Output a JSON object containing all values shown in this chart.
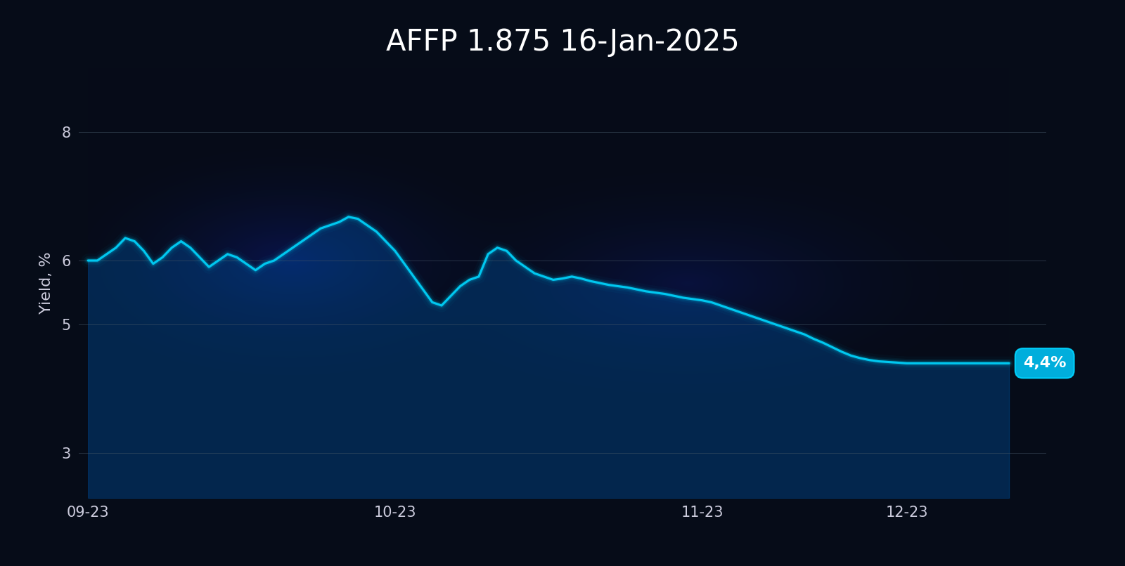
{
  "title": "AFFP 1.875 16-Jan-2025",
  "ylabel": "Yield, %",
  "yticks": [
    3,
    5,
    6,
    8
  ],
  "ylim": [
    2.3,
    9.0
  ],
  "xlabels": [
    "09-23",
    "10-23",
    "11-23",
    "12-23"
  ],
  "xtick_positions": [
    0,
    33,
    66,
    88
  ],
  "end_label": "4,4%",
  "line_color": "#00c8f0",
  "bg_color_dark": "#060c18",
  "title_color": "#ffffff",
  "axis_color": "#ccccdd",
  "grid_color": "#445566",
  "label_fontsize": 16,
  "title_fontsize": 30,
  "tick_fontsize": 15,
  "x_values": [
    0,
    1,
    2,
    3,
    4,
    5,
    6,
    7,
    8,
    9,
    10,
    11,
    12,
    13,
    14,
    15,
    16,
    17,
    18,
    19,
    20,
    21,
    22,
    23,
    24,
    25,
    26,
    27,
    28,
    29,
    30,
    31,
    32,
    33,
    34,
    35,
    36,
    37,
    38,
    39,
    40,
    41,
    42,
    43,
    44,
    45,
    46,
    47,
    48,
    49,
    50,
    51,
    52,
    53,
    54,
    55,
    56,
    57,
    58,
    59,
    60,
    61,
    62,
    63,
    64,
    65,
    66,
    67,
    68,
    69,
    70,
    71,
    72,
    73,
    74,
    75,
    76,
    77,
    78,
    79,
    80,
    81,
    82,
    83,
    84,
    85,
    86,
    87,
    88,
    89,
    90,
    91,
    92,
    93,
    94,
    95,
    96,
    97,
    98,
    99
  ],
  "y_values": [
    6.0,
    6.0,
    6.1,
    6.2,
    6.35,
    6.3,
    6.15,
    5.95,
    6.05,
    6.2,
    6.3,
    6.2,
    6.05,
    5.9,
    6.0,
    6.1,
    6.05,
    5.95,
    5.85,
    5.95,
    6.0,
    6.1,
    6.2,
    6.3,
    6.4,
    6.5,
    6.55,
    6.6,
    6.68,
    6.65,
    6.55,
    6.45,
    6.3,
    6.15,
    5.95,
    5.75,
    5.55,
    5.35,
    5.3,
    5.45,
    5.6,
    5.7,
    5.75,
    6.1,
    6.2,
    6.15,
    6.0,
    5.9,
    5.8,
    5.75,
    5.7,
    5.72,
    5.75,
    5.72,
    5.68,
    5.65,
    5.62,
    5.6,
    5.58,
    5.55,
    5.52,
    5.5,
    5.48,
    5.45,
    5.42,
    5.4,
    5.38,
    5.35,
    5.3,
    5.25,
    5.2,
    5.15,
    5.1,
    5.05,
    5.0,
    4.95,
    4.9,
    4.85,
    4.78,
    4.72,
    4.65,
    4.58,
    4.52,
    4.48,
    4.45,
    4.43,
    4.42,
    4.41,
    4.4,
    4.4,
    4.4,
    4.4,
    4.4,
    4.4,
    4.4,
    4.4,
    4.4,
    4.4,
    4.4,
    4.4
  ]
}
